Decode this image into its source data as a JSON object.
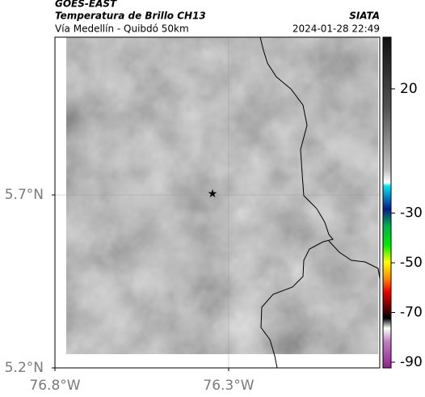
{
  "header": {
    "title": "GOES-EAST",
    "subtitle": "Temperatura de Brillo CH13",
    "route": "Vía Medellín - Quibdó 50km",
    "source": "SIATA",
    "datetime": "2024-01-28 22:49"
  },
  "map": {
    "xlim": [
      -76.8,
      -75.865
    ],
    "ylim": [
      5.2,
      6.156
    ],
    "xticks": [
      {
        "value": -76.8,
        "label": "76.8°W"
      },
      {
        "value": -76.3,
        "label": "76.3°W"
      }
    ],
    "yticks": [
      {
        "value": 5.2,
        "label": "5.2°N"
      },
      {
        "value": 5.7,
        "label": "5.7°N"
      }
    ]
  },
  "colorbar": {
    "lim": [
      -92.3,
      40.8
    ],
    "ticks": [
      20,
      -30,
      -50,
      -70,
      -90
    ]
  }
}
